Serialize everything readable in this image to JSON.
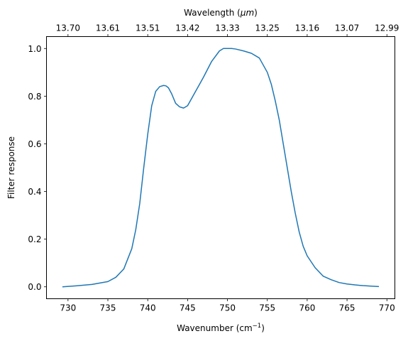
{
  "chart_data": {
    "type": "line",
    "xlabel_main": "Wavenumber (cm",
    "xlabel_sup": "−1",
    "xlabel_close": ")",
    "ylabel": "Filter response",
    "top_xlabel_main": "Wavelength (",
    "top_xlabel_unit": "μm",
    "top_xlabel_close": ")",
    "xlim": [
      727.3,
      771.0
    ],
    "ylim": [
      -0.05,
      1.05
    ],
    "x_ticks": [
      730,
      735,
      740,
      745,
      750,
      755,
      760,
      765,
      770
    ],
    "y_ticks": [
      0.0,
      0.2,
      0.4,
      0.6,
      0.8,
      1.0
    ],
    "y_tick_labels": [
      "0.0",
      "0.2",
      "0.4",
      "0.6",
      "0.8",
      "1.0"
    ],
    "top_ticks": [
      "13.70",
      "13.61",
      "13.51",
      "13.42",
      "13.33",
      "13.25",
      "13.16",
      "13.07",
      "12.99"
    ],
    "grid": false,
    "series": [
      {
        "color": "#1f77b4",
        "x": [
          729.3,
          731,
          733,
          735,
          736,
          737,
          738,
          738.5,
          739,
          739.5,
          740,
          740.5,
          741,
          741.5,
          742,
          742.3,
          742.6,
          743,
          743.5,
          744,
          744.5,
          745,
          745.5,
          746,
          746.5,
          747,
          748,
          749,
          749.5,
          750,
          750.5,
          751,
          752,
          753,
          754,
          755,
          755.5,
          756,
          756.5,
          757,
          757.5,
          758,
          758.5,
          759,
          759.5,
          760,
          761,
          762,
          763,
          764,
          765,
          766,
          767,
          768,
          769
        ],
        "y": [
          0.0,
          0.004,
          0.01,
          0.022,
          0.04,
          0.075,
          0.16,
          0.24,
          0.35,
          0.5,
          0.64,
          0.76,
          0.82,
          0.84,
          0.845,
          0.843,
          0.835,
          0.81,
          0.77,
          0.755,
          0.75,
          0.76,
          0.79,
          0.82,
          0.85,
          0.88,
          0.945,
          0.99,
          1.0,
          1.0,
          1.0,
          0.998,
          0.99,
          0.98,
          0.96,
          0.9,
          0.85,
          0.78,
          0.7,
          0.6,
          0.5,
          0.4,
          0.31,
          0.23,
          0.17,
          0.13,
          0.08,
          0.045,
          0.03,
          0.018,
          0.012,
          0.008,
          0.005,
          0.003,
          0.001
        ]
      }
    ]
  }
}
